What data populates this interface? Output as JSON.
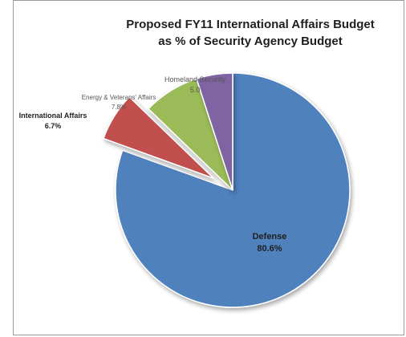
{
  "chart_data": {
    "type": "pie",
    "title_lines": [
      "Proposed FY11 International Affairs Budget",
      "as % of Security Agency Budget"
    ],
    "slices": [
      {
        "label": "Defense",
        "value_label": "80.6%",
        "value": 80.6,
        "color": "#4f81bd",
        "exploded": false
      },
      {
        "label": "International Affairs",
        "value_label": "6.7%",
        "value": 6.7,
        "color": "#c0504d",
        "exploded": true
      },
      {
        "label": "Energy & Veterans' Affairs",
        "value_label": "7.8%",
        "value": 7.8,
        "color": "#9bbb59",
        "exploded": false
      },
      {
        "label": "Homeland Security",
        "value_label": "5.0",
        "value": 5.0,
        "color": "#8064a2",
        "exploded": false
      }
    ],
    "legend": "none"
  }
}
